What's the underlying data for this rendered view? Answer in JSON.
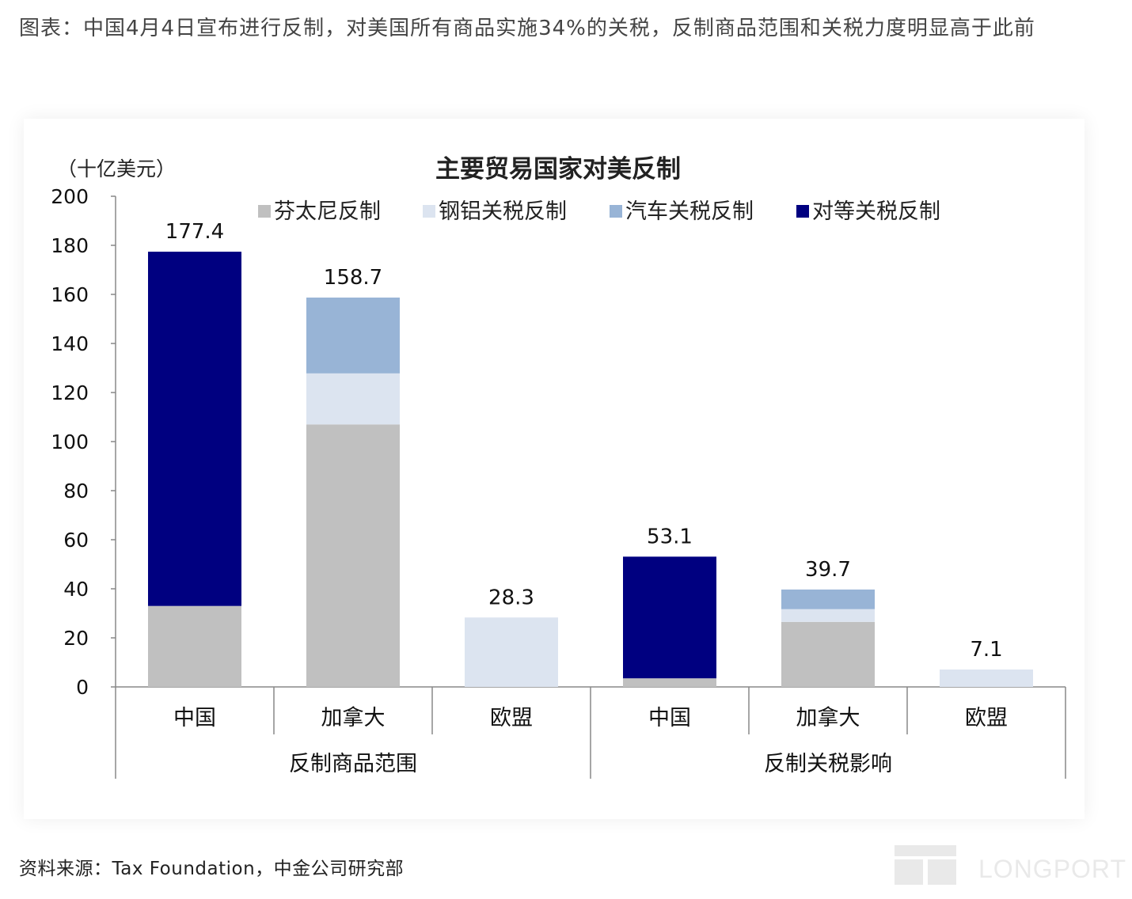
{
  "caption": "图表：中国4月4日宣布进行反制，对美国所有商品实施34%的关税，反制商品范围和关税力度明显高于此前",
  "source": "资料来源：Tax Foundation，中金公司研究部",
  "watermark": {
    "text": "LONGPORT"
  },
  "colors": {
    "芬太尼反制": "#c0c0c0",
    "钢铝关税反制": "#dce4f0",
    "汽车关税反制": "#98b4d6",
    "对等关税反制": "#000080"
  },
  "chart_data": {
    "type": "bar",
    "stacked": true,
    "title": "主要贸易国家对美反制",
    "ylabel": "（十亿美元）",
    "ylim": [
      0,
      200
    ],
    "yticks": [
      0,
      20,
      40,
      60,
      80,
      100,
      120,
      140,
      160,
      180,
      200
    ],
    "categories": [
      "中国",
      "加拿大",
      "欧盟",
      "中国",
      "加拿大",
      "欧盟"
    ],
    "groups": [
      {
        "label": "反制商品范围",
        "categories": [
          0,
          1,
          2
        ]
      },
      {
        "label": "反制关税影响",
        "categories": [
          3,
          4,
          5
        ]
      }
    ],
    "legend": [
      "芬太尼反制",
      "钢铝关税反制",
      "汽车关税反制",
      "对等关税反制"
    ],
    "legend_position": "top",
    "series": [
      {
        "name": "芬太尼反制",
        "values": [
          33,
          107,
          0,
          3.5,
          26.5,
          0
        ]
      },
      {
        "name": "钢铝关税反制",
        "values": [
          0,
          20.8,
          28.3,
          0,
          5.2,
          7.1
        ]
      },
      {
        "name": "汽车关税反制",
        "values": [
          0,
          30.9,
          0,
          0,
          8,
          0
        ]
      },
      {
        "name": "对等关税反制",
        "values": [
          144.4,
          0,
          0,
          49.6,
          0,
          0
        ]
      }
    ],
    "totals": [
      "177.4",
      "158.7",
      "28.3",
      "53.1",
      "39.7",
      "7.1"
    ],
    "grid": false
  }
}
